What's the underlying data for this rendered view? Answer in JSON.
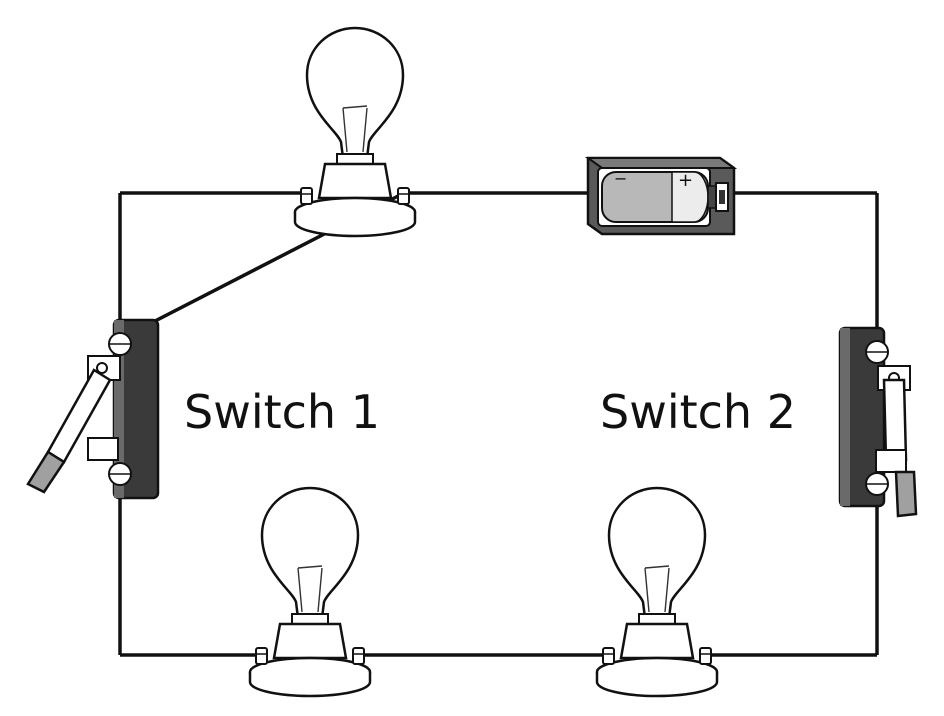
{
  "labels": {
    "switch1": "Switch 1",
    "switch2": "Switch 2"
  },
  "battery": {
    "negative_symbol": "−",
    "positive_symbol": "+"
  },
  "colors": {
    "wire": "#111111",
    "switch_base": "#3a3a3a",
    "battery_cell": "#b8b8b8",
    "battery_case": "#5a5a5a",
    "bulb_fill": "#ffffff"
  }
}
